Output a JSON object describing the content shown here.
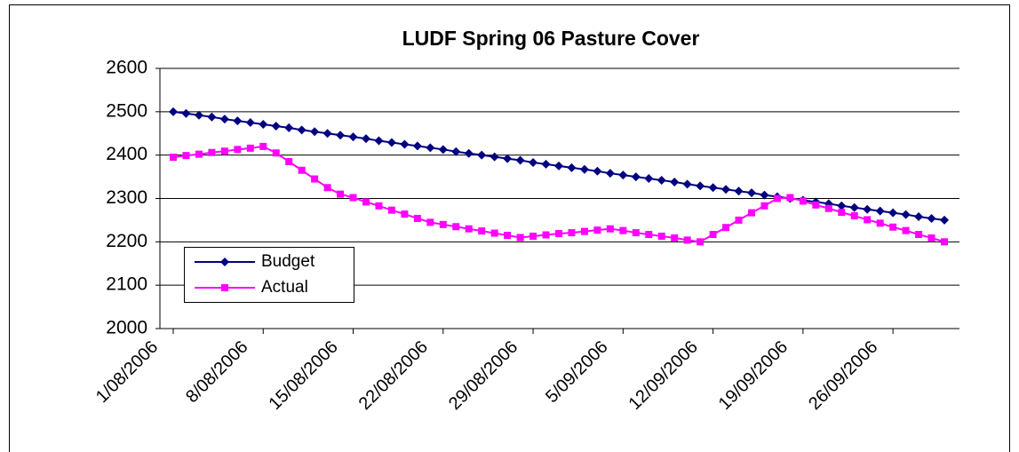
{
  "chart_data": {
    "type": "line",
    "title": "LUDF Spring 06 Pasture Cover",
    "categories": [
      "1/08/2006",
      null,
      null,
      null,
      null,
      null,
      null,
      "8/08/2006",
      null,
      null,
      null,
      null,
      null,
      null,
      "15/08/2006",
      null,
      null,
      null,
      null,
      null,
      null,
      "22/08/2006",
      null,
      null,
      null,
      null,
      null,
      null,
      "29/08/2006",
      null,
      null,
      null,
      null,
      null,
      null,
      "5/09/2006",
      null,
      null,
      null,
      null,
      null,
      null,
      "12/09/2006",
      null,
      null,
      null,
      null,
      null,
      null,
      "19/09/2006",
      null,
      null,
      null,
      null,
      null,
      null,
      "26/09/2006",
      null,
      null,
      null,
      null
    ],
    "series": [
      {
        "name": "Budget",
        "color": "#000080",
        "marker": "diamond",
        "values": [
          2500,
          2496,
          2492,
          2488,
          2483,
          2479,
          2475,
          2471,
          2467,
          2463,
          2458,
          2454,
          2450,
          2446,
          2442,
          2438,
          2433,
          2429,
          2425,
          2421,
          2417,
          2413,
          2408,
          2404,
          2400,
          2396,
          2392,
          2388,
          2383,
          2379,
          2375,
          2371,
          2367,
          2363,
          2358,
          2354,
          2350,
          2346,
          2342,
          2338,
          2333,
          2329,
          2325,
          2321,
          2317,
          2313,
          2308,
          2304,
          2300,
          2296,
          2292,
          2288,
          2283,
          2279,
          2275,
          2271,
          2267,
          2263,
          2258,
          2254,
          2250
        ]
      },
      {
        "name": "Actual",
        "color": "#FF00FF",
        "marker": "square",
        "values": [
          2395,
          2399,
          2402,
          2406,
          2409,
          2413,
          2416,
          2420,
          2405,
          2385,
          2365,
          2345,
          2325,
          2310,
          2302,
          2292,
          2283,
          2273,
          2264,
          2254,
          2245,
          2240,
          2235,
          2230,
          2225,
          2220,
          2215,
          2210,
          2213,
          2216,
          2219,
          2221,
          2224,
          2227,
          2230,
          2226,
          2221,
          2217,
          2213,
          2209,
          2204,
          2200,
          2217,
          2233,
          2250,
          2267,
          2283,
          2300,
          2302,
          2294,
          2285,
          2277,
          2268,
          2260,
          2251,
          2243,
          2234,
          2226,
          2217,
          2209,
          2200
        ]
      }
    ],
    "ylim": [
      2000,
      2600
    ],
    "yticks": [
      2000,
      2100,
      2200,
      2300,
      2400,
      2500,
      2600
    ],
    "grid": true,
    "legend": "lower left"
  }
}
